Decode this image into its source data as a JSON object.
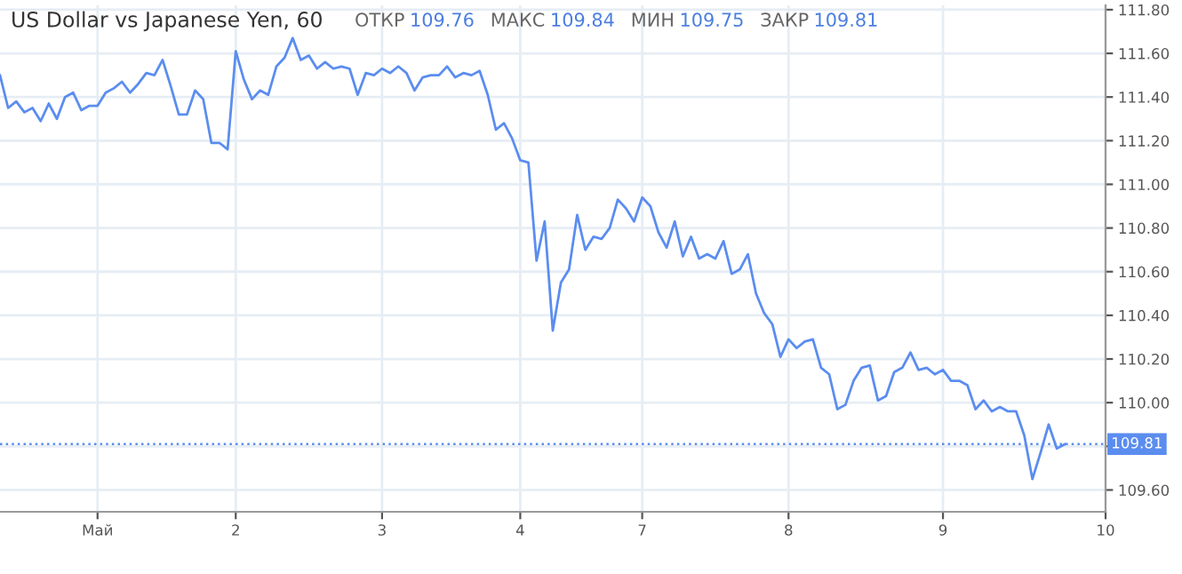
{
  "chart_data": {
    "type": "line",
    "title": "US Dollar vs Japanese Yen, 60",
    "annotations": [
      "ОТКР 109.76",
      "МАКС 109.84",
      "МИН 109.75",
      "ЗАКР 109.81"
    ],
    "categories": [
      null,
      null,
      null,
      null,
      null,
      null,
      null,
      null,
      null,
      null,
      null,
      null,
      "Май",
      null,
      null,
      null,
      null,
      null,
      null,
      null,
      null,
      null,
      null,
      null,
      null,
      null,
      null,
      null,
      null,
      "2",
      null,
      null,
      null,
      null,
      null,
      null,
      null,
      null,
      null,
      null,
      null,
      null,
      null,
      null,
      null,
      null,
      null,
      "3",
      null,
      null,
      null,
      null,
      null,
      null,
      null,
      null,
      null,
      null,
      null,
      null,
      null,
      null,
      null,
      null,
      "4",
      null,
      null,
      null,
      null,
      null,
      null,
      null,
      null,
      null,
      null,
      null,
      null,
      null,
      null,
      "7",
      null,
      null,
      null,
      null,
      null,
      null,
      null,
      null,
      null,
      null,
      null,
      null,
      null,
      null,
      null,
      null,
      null,
      "8",
      null,
      null,
      null,
      null,
      null,
      null,
      null,
      null,
      null,
      null,
      null,
      null,
      null,
      null,
      null,
      null,
      null,
      null,
      "9",
      null,
      null,
      null,
      null,
      null,
      null,
      null,
      null,
      null,
      null,
      null,
      null,
      null,
      null,
      null,
      null,
      null,
      null,
      null,
      "10"
    ],
    "series": [
      {
        "color": "#5b8def",
        "values": [
          111.5,
          111.35,
          111.38,
          111.33,
          111.35,
          111.29,
          111.37,
          111.3,
          111.4,
          111.42,
          111.34,
          111.36,
          111.36,
          111.42,
          111.44,
          111.47,
          111.42,
          111.46,
          111.51,
          111.5,
          111.57,
          111.45,
          111.32,
          111.32,
          111.43,
          111.39,
          111.19,
          111.19,
          111.16,
          111.61,
          111.48,
          111.39,
          111.43,
          111.41,
          111.54,
          111.58,
          111.67,
          111.57,
          111.59,
          111.53,
          111.56,
          111.53,
          111.54,
          111.53,
          111.41,
          111.51,
          111.5,
          111.53,
          111.51,
          111.54,
          111.51,
          111.43,
          111.49,
          111.5,
          111.5,
          111.54,
          111.49,
          111.51,
          111.5,
          111.52,
          111.41,
          111.25,
          111.28,
          111.21,
          111.11,
          111.1,
          110.65,
          110.83,
          110.33,
          110.55,
          110.61,
          110.86,
          110.7,
          110.76,
          110.75,
          110.8,
          110.93,
          110.89,
          110.83,
          110.94,
          110.9,
          110.78,
          110.71,
          110.83,
          110.67,
          110.76,
          110.66,
          110.68,
          110.66,
          110.74,
          110.59,
          110.61,
          110.68,
          110.5,
          110.41,
          110.36,
          110.21,
          110.29,
          110.25,
          110.28,
          110.29,
          110.16,
          110.13,
          109.97,
          109.99,
          110.1,
          110.16,
          110.17,
          110.01,
          110.03,
          110.14,
          110.16,
          110.23,
          110.15,
          110.16,
          110.13,
          110.15,
          110.1,
          110.1,
          110.08,
          109.97,
          110.01,
          109.96,
          109.98,
          109.96,
          109.96,
          109.85,
          109.65,
          109.77,
          109.9,
          109.79,
          109.81,
          null,
          null,
          null,
          null,
          null
        ]
      }
    ],
    "ylim": [
      109.5,
      111.82
    ],
    "yticks": [
      {
        "value": 109.6,
        "label": "109.60"
      },
      {
        "value": 109.8,
        "label": null
      },
      {
        "value": 110.0,
        "label": "110.00"
      },
      {
        "value": 110.2,
        "label": "110.20"
      },
      {
        "value": 110.4,
        "label": "110.40"
      },
      {
        "value": 110.6,
        "label": "110.60"
      },
      {
        "value": 110.8,
        "label": "110.80"
      },
      {
        "value": 111.0,
        "label": "111.00"
      },
      {
        "value": 111.2,
        "label": "111.20"
      },
      {
        "value": 111.4,
        "label": "111.40"
      },
      {
        "value": 111.6,
        "label": "111.60"
      },
      {
        "value": 111.8,
        "label": "111.80"
      }
    ],
    "ref_lines": [
      {
        "axis": "y",
        "value": 109.81,
        "label": "109.81",
        "color": "#5b8def",
        "line_style": "dotted"
      }
    ],
    "grid": true,
    "marker": "none",
    "line_style": "solid",
    "legend": false
  }
}
